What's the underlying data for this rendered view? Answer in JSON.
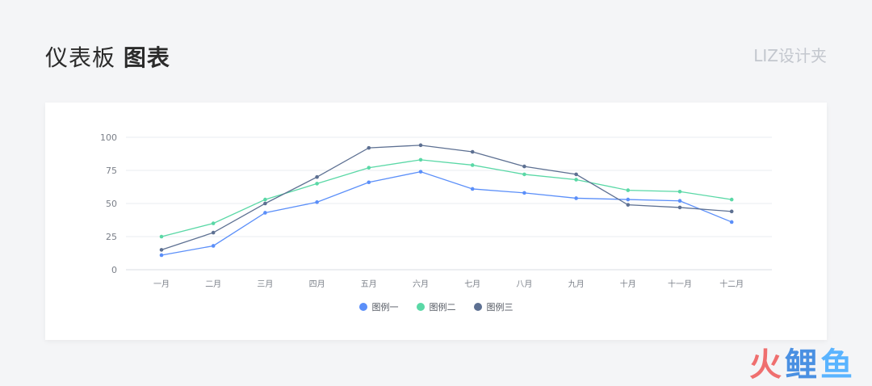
{
  "header": {
    "title_light": "仪表板",
    "title_bold": "图表",
    "brand": "LIZ设计夹"
  },
  "watermark": {
    "chars": [
      "火",
      "鲤",
      "鱼"
    ],
    "colors": [
      "#ef6f6f",
      "#4a90e2",
      "#5ab4ff"
    ]
  },
  "chart_data": {
    "type": "line",
    "categories": [
      "一月",
      "二月",
      "三月",
      "四月",
      "五月",
      "六月",
      "七月",
      "八月",
      "九月",
      "十月",
      "十一月",
      "十二月"
    ],
    "yticks": [
      0,
      25,
      50,
      75,
      100
    ],
    "ylim": [
      0,
      100
    ],
    "grid": true,
    "legend_position": "bottom",
    "series": [
      {
        "name": "图例一",
        "color": "#5b8ff9",
        "values": [
          11,
          18,
          43,
          51,
          66,
          74,
          61,
          58,
          54,
          53,
          52,
          36
        ]
      },
      {
        "name": "图例二",
        "color": "#5ad8a6",
        "values": [
          25,
          35,
          53,
          65,
          77,
          83,
          79,
          72,
          68,
          60,
          59,
          53
        ]
      },
      {
        "name": "图例三",
        "color": "#5d7092",
        "values": [
          15,
          28,
          50,
          70,
          92,
          94,
          89,
          78,
          72,
          49,
          47,
          44
        ]
      }
    ]
  }
}
